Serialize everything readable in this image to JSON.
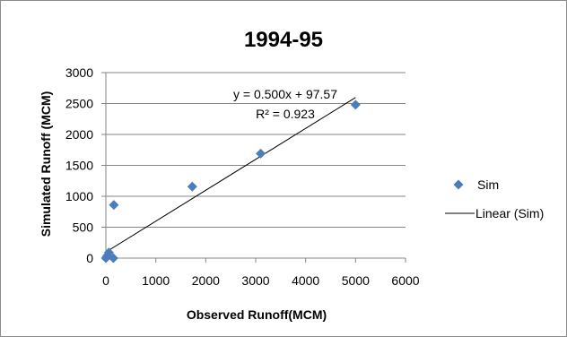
{
  "chart_data": {
    "type": "scatter",
    "title": "1994-95",
    "xlabel": "Observed Runoff(MCM)",
    "ylabel": "Simulated Runoff (MCM)",
    "xlim": [
      0,
      6000
    ],
    "ylim": [
      0,
      3000
    ],
    "x_ticks": [
      "0",
      "1000",
      "2000",
      "3000",
      "4000",
      "5000",
      "6000"
    ],
    "y_ticks": [
      "0",
      "500",
      "1000",
      "1500",
      "2000",
      "2500",
      "3000"
    ],
    "grid": "horizontal",
    "legend_position": "right",
    "series": [
      {
        "name": "Sim",
        "marker": "diamond",
        "color": "#4a7ebb",
        "points": [
          {
            "x": 0,
            "y": 0
          },
          {
            "x": 30,
            "y": 40
          },
          {
            "x": 60,
            "y": 90
          },
          {
            "x": 20,
            "y": 20
          },
          {
            "x": 150,
            "y": 0
          },
          {
            "x": 160,
            "y": 860
          },
          {
            "x": 1730,
            "y": 1155
          },
          {
            "x": 3100,
            "y": 1690
          },
          {
            "x": 5000,
            "y": 2480
          }
        ]
      }
    ],
    "trendline": {
      "name": "Linear (Sim)",
      "color": "#000000",
      "x_range": [
        0,
        5000
      ],
      "equation": "y = 0.500x + 97.57",
      "r_squared": "R² = 0.923"
    }
  }
}
